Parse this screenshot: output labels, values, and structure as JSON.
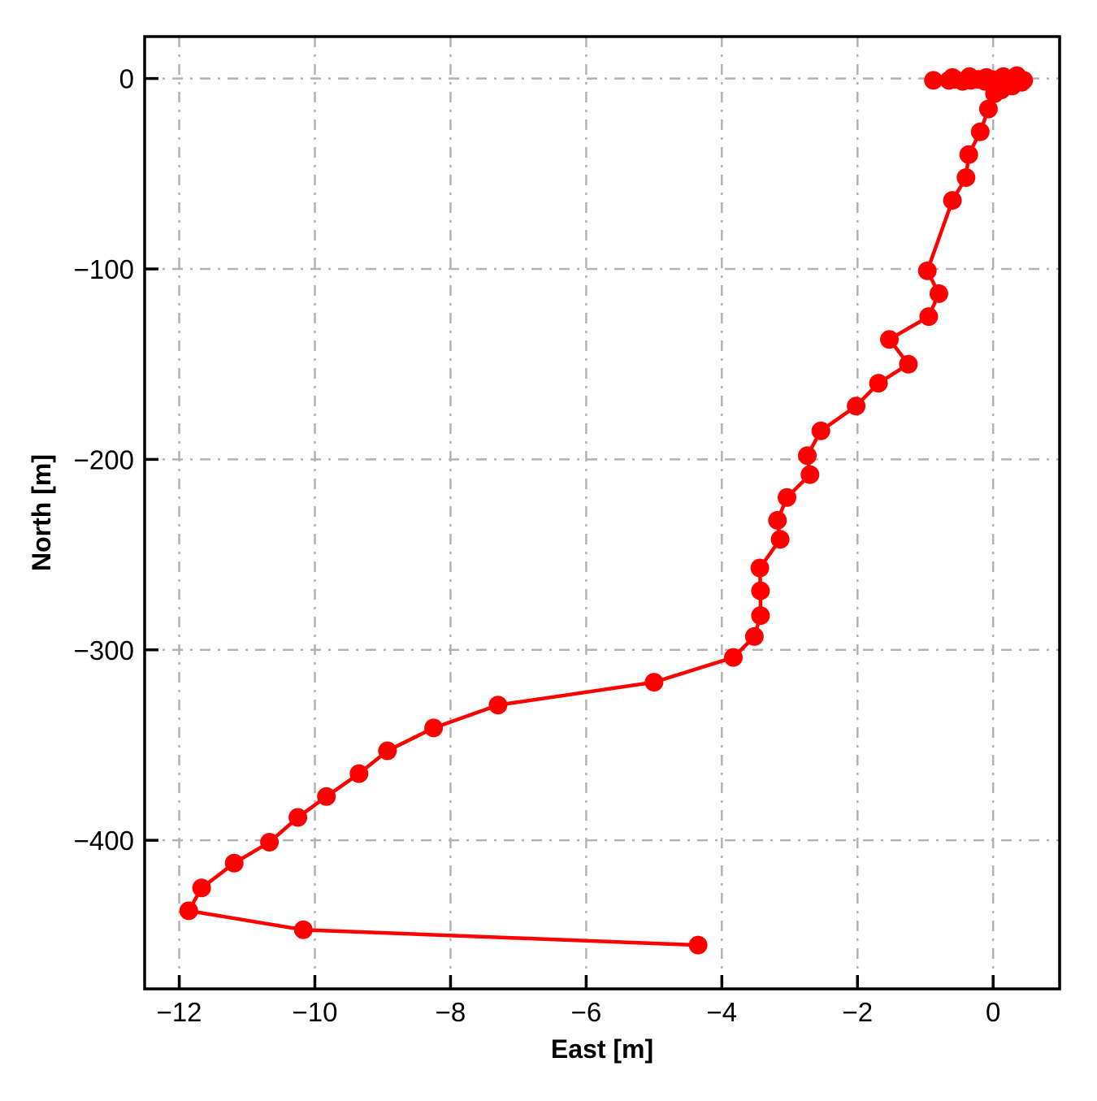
{
  "figure": {
    "background": "#ffffff"
  },
  "chart_data": {
    "type": "line",
    "title": "",
    "xlabel": "East [m]",
    "ylabel": "North [m]",
    "xlim": [
      -12.51,
      0.98
    ],
    "ylim": [
      -478,
      22
    ],
    "x_ticks": [
      -12,
      -10,
      -8,
      -6,
      -4,
      -2,
      0
    ],
    "x_tick_labels": [
      "−12",
      "−10",
      "−8",
      "−6",
      "−4",
      "−2",
      "0"
    ],
    "y_ticks": [
      0,
      -100,
      -200,
      -300,
      -400
    ],
    "y_tick_labels": [
      "0",
      "−100",
      "−200",
      "−300",
      "−400"
    ],
    "grid": true,
    "grid_style": "dash-dot",
    "grid_color": "#b3b3b3",
    "spine_color": "#000000",
    "legend": "none",
    "series": [
      {
        "name": "trajectory",
        "color": "#ff0000",
        "marker": "circle",
        "points": [
          [
            0.45,
            -1
          ],
          [
            0.36,
            -0.5
          ],
          [
            0.27,
            -1.5
          ],
          [
            0.18,
            -0.5
          ],
          [
            0.08,
            -1.5
          ],
          [
            -0.02,
            -0.5
          ],
          [
            -0.12,
            -1.5
          ],
          [
            -0.22,
            -0.5
          ],
          [
            -0.33,
            -1
          ],
          [
            -0.45,
            -1.5
          ],
          [
            -0.56,
            -0.5
          ],
          [
            -0.65,
            -1
          ],
          [
            -0.88,
            -1
          ],
          [
            -0.6,
            0.5
          ],
          [
            -0.35,
            1
          ],
          [
            -0.1,
            0.5
          ],
          [
            0.15,
            1
          ],
          [
            0.35,
            1.5
          ],
          [
            0.42,
            -2
          ],
          [
            0.28,
            -4
          ],
          [
            0.12,
            -6
          ],
          [
            0.02,
            -8
          ],
          [
            -0.07,
            -16
          ],
          [
            -0.19,
            -28
          ],
          [
            -0.36,
            -40
          ],
          [
            -0.4,
            -52
          ],
          [
            -0.6,
            -64
          ],
          [
            -0.97,
            -101
          ],
          [
            -0.8,
            -113
          ],
          [
            -0.95,
            -125
          ],
          [
            -1.53,
            -137
          ],
          [
            -1.25,
            -150
          ],
          [
            -1.69,
            -160
          ],
          [
            -2.02,
            -172
          ],
          [
            -2.54,
            -185
          ],
          [
            -2.74,
            -198
          ],
          [
            -2.7,
            -208
          ],
          [
            -3.04,
            -220
          ],
          [
            -3.18,
            -232
          ],
          [
            -3.14,
            -242
          ],
          [
            -3.44,
            -257
          ],
          [
            -3.43,
            -269
          ],
          [
            -3.43,
            -282
          ],
          [
            -3.52,
            -293
          ],
          [
            -3.83,
            -304
          ],
          [
            -5.0,
            -317
          ],
          [
            -7.3,
            -329
          ],
          [
            -8.25,
            -341
          ],
          [
            -8.93,
            -353
          ],
          [
            -9.35,
            -365
          ],
          [
            -9.83,
            -377
          ],
          [
            -10.25,
            -388
          ],
          [
            -10.67,
            -401
          ],
          [
            -11.19,
            -412
          ],
          [
            -11.67,
            -425
          ],
          [
            -11.86,
            -437
          ],
          [
            -10.17,
            -447
          ],
          [
            -4.35,
            -455
          ]
        ]
      }
    ]
  }
}
